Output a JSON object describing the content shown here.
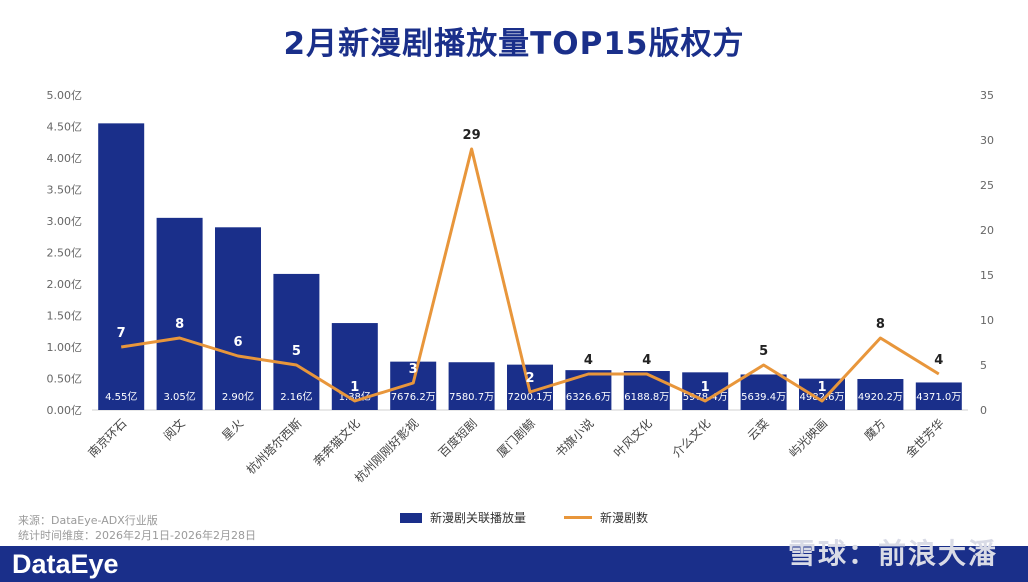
{
  "title": "2月新漫剧播放量TOP15版权方",
  "chart_data": {
    "type": "bar",
    "categories": [
      "南京环石",
      "阅文",
      "星火",
      "杭州塔尔西斯",
      "奔奔猫文化",
      "杭州刚刚好影视",
      "百度短剧",
      "厦门剧鲸",
      "书旗小说",
      "叶风文化",
      "介么文化",
      "云菜",
      "屿光映画",
      "魔方",
      "金世芳华"
    ],
    "series": [
      {
        "name": "新漫剧关联播放量",
        "axis": "left",
        "values": [
          4.55,
          3.05,
          2.9,
          2.16,
          1.38,
          0.76762,
          0.75807,
          0.72001,
          0.63266,
          0.61888,
          0.59784,
          0.56394,
          0.49826,
          0.49202,
          0.4371
        ],
        "labels": [
          "4.55亿",
          "3.05亿",
          "2.90亿",
          "2.16亿",
          "1.38亿",
          "7676.2万",
          "7580.7万",
          "7200.1万",
          "6326.6万",
          "6188.8万",
          "5978.4万",
          "5639.4万",
          "4982.6万",
          "4920.2万",
          "4371.0万"
        ]
      },
      {
        "name": "新漫剧数",
        "axis": "right",
        "values": [
          7,
          8,
          6,
          5,
          1,
          3,
          29,
          2,
          4,
          4,
          1,
          5,
          1,
          8,
          4
        ]
      }
    ],
    "y_left": {
      "min": 0,
      "max": 5,
      "step": 0.5,
      "unit": "亿",
      "ticks": [
        "0.00亿",
        "0.50亿",
        "1.00亿",
        "1.50亿",
        "2.00亿",
        "2.50亿",
        "3.00亿",
        "3.50亿",
        "4.00亿",
        "4.50亿",
        "5.00亿"
      ]
    },
    "y_right": {
      "min": 0,
      "max": 35,
      "step": 5,
      "ticks": [
        "0",
        "5",
        "10",
        "15",
        "20",
        "25",
        "30",
        "35"
      ]
    },
    "colors": {
      "bar": "#1a2f8a",
      "line": "#e8963b",
      "axis_text": "#666666"
    }
  },
  "legend": {
    "bar_label": "新漫剧关联播放量",
    "line_label": "新漫剧数"
  },
  "source": {
    "line1": "来源：DataEye-ADX行业版",
    "line2": "统计时间维度：2026年2月1日-2026年2月28日"
  },
  "brand": {
    "logo": "DataEye",
    "watermark": "雪球：前浪大潘"
  }
}
